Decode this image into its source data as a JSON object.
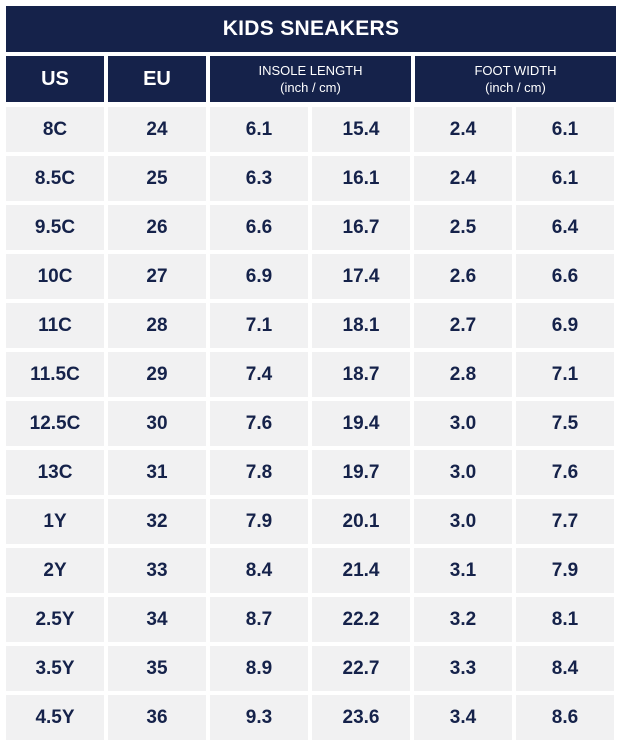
{
  "table": {
    "title": "KIDS SNEAKERS",
    "headers": {
      "us": "US",
      "eu": "EU",
      "insole_line1": "INSOLE LENGTH",
      "insole_line2": "(inch / cm)",
      "foot_line1": "FOOT WIDTH",
      "foot_line2": "(inch / cm)"
    },
    "rows": [
      [
        "8C",
        "24",
        "6.1",
        "15.4",
        "2.4",
        "6.1"
      ],
      [
        "8.5C",
        "25",
        "6.3",
        "16.1",
        "2.4",
        "6.1"
      ],
      [
        "9.5C",
        "26",
        "6.6",
        "16.7",
        "2.5",
        "6.4"
      ],
      [
        "10C",
        "27",
        "6.9",
        "17.4",
        "2.6",
        "6.6"
      ],
      [
        "11C",
        "28",
        "7.1",
        "18.1",
        "2.7",
        "6.9"
      ],
      [
        "11.5C",
        "29",
        "7.4",
        "18.7",
        "2.8",
        "7.1"
      ],
      [
        "12.5C",
        "30",
        "7.6",
        "19.4",
        "3.0",
        "7.5"
      ],
      [
        "13C",
        "31",
        "7.8",
        "19.7",
        "3.0",
        "7.6"
      ],
      [
        "1Y",
        "32",
        "7.9",
        "20.1",
        "3.0",
        "7.7"
      ],
      [
        "2Y",
        "33",
        "8.4",
        "21.4",
        "3.1",
        "7.9"
      ],
      [
        "2.5Y",
        "34",
        "8.7",
        "22.2",
        "3.2",
        "8.1"
      ],
      [
        "3.5Y",
        "35",
        "8.9",
        "22.7",
        "3.3",
        "8.4"
      ],
      [
        "4.5Y",
        "36",
        "9.3",
        "23.6",
        "3.4",
        "8.6"
      ]
    ],
    "colors": {
      "header_bg": "#15224a",
      "cell_bg": "#f1f1f2",
      "text_dark": "#15224a"
    }
  }
}
